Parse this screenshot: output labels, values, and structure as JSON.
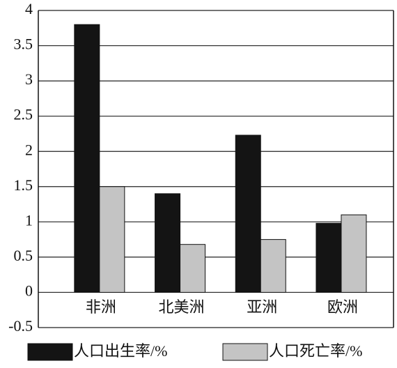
{
  "chart_data": {
    "type": "bar",
    "categories": [
      "非洲",
      "北美洲",
      "亚洲",
      "欧洲"
    ],
    "series": [
      {
        "name": "人口出生率/%",
        "color": "#141414",
        "values": [
          3.8,
          1.4,
          2.23,
          0.98
        ]
      },
      {
        "name": "人口死亡率/%",
        "color": "#c4c4c4",
        "values": [
          1.5,
          0.68,
          0.75,
          1.1
        ]
      }
    ],
    "ylim": [
      -0.5,
      4
    ],
    "yticks": [
      -0.5,
      0,
      0.5,
      1,
      1.5,
      2,
      2.5,
      3,
      3.5,
      4
    ],
    "grid": true
  }
}
